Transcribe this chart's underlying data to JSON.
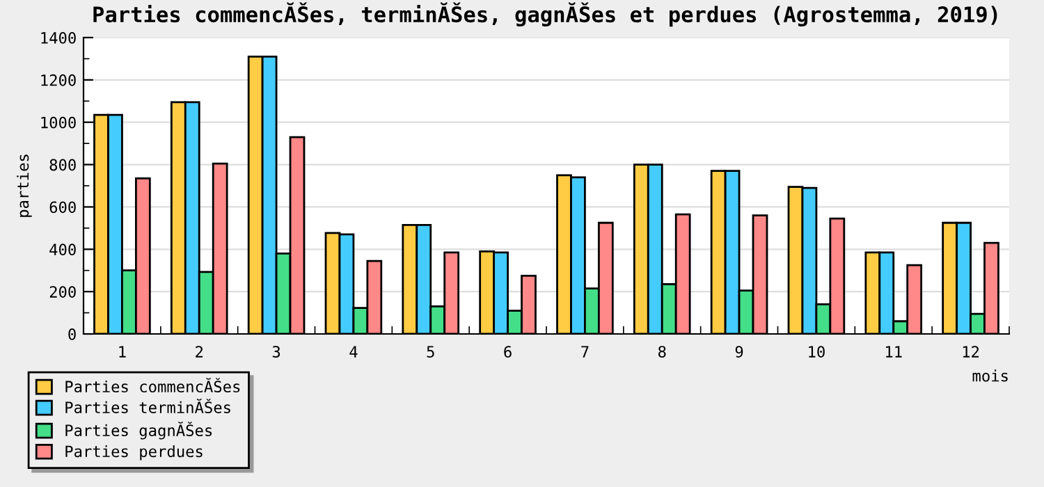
{
  "chart_data": {
    "type": "bar",
    "title": "Parties commencĂŠes, terminĂŠes, gagnĂŠes et perdues (Agrostemma, 2019)",
    "xlabel": "mois",
    "ylabel": "parties",
    "categories": [
      "1",
      "2",
      "3",
      "4",
      "5",
      "6",
      "7",
      "8",
      "9",
      "10",
      "11",
      "12"
    ],
    "series": [
      {
        "name": "Parties commencĂŠes",
        "color": "#ffcc44",
        "values": [
          1035,
          1095,
          1310,
          477,
          515,
          390,
          750,
          800,
          770,
          695,
          385,
          525
        ]
      },
      {
        "name": "Parties terminĂŠes",
        "color": "#44ccff",
        "values": [
          1035,
          1095,
          1310,
          470,
          515,
          385,
          740,
          800,
          770,
          690,
          385,
          525
        ]
      },
      {
        "name": "Parties gagnĂŠes",
        "color": "#44dd88",
        "values": [
          300,
          293,
          380,
          123,
          130,
          110,
          215,
          235,
          205,
          140,
          60,
          95
        ]
      },
      {
        "name": "Parties perdues",
        "color": "#ff8888",
        "values": [
          735,
          805,
          930,
          345,
          385,
          275,
          525,
          565,
          560,
          545,
          325,
          430
        ]
      }
    ],
    "ylim": [
      0,
      1400
    ],
    "yticks": [
      0,
      {
        "value": 100,
        "label": null
      },
      200,
      {
        "value": 300,
        "label": null
      },
      400,
      {
        "value": 500,
        "label": null
      },
      600,
      {
        "value": 700,
        "label": null
      },
      800,
      {
        "value": 900,
        "label": null
      },
      1000,
      {
        "value": 1100,
        "label": null
      },
      1200,
      {
        "value": 1300,
        "label": null
      },
      1400
    ],
    "grid": "y",
    "legend": "bottom left"
  }
}
